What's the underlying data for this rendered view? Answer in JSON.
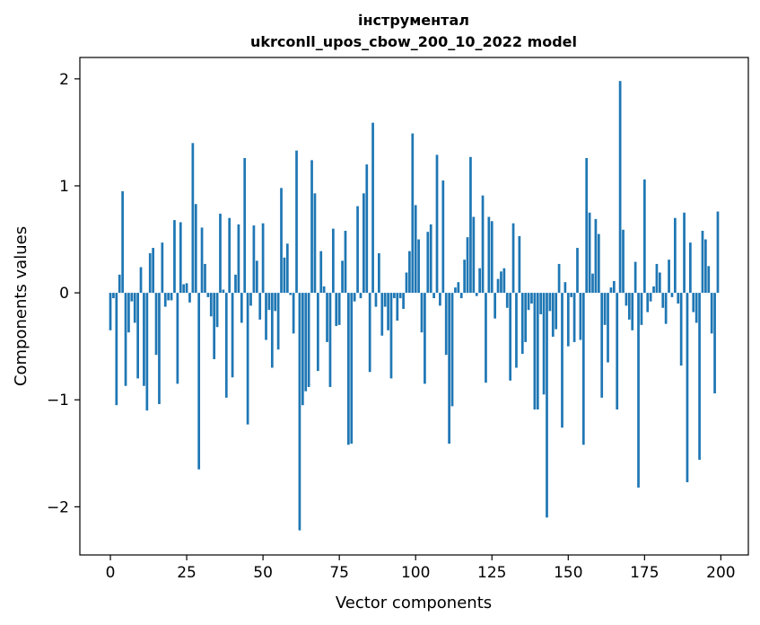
{
  "chart_data": {
    "type": "bar",
    "title_line1": "інструментал",
    "title_line2": "ukrconll_upos_cbow_200_10_2022 model",
    "xlabel": "Vector components",
    "ylabel": "Components values",
    "xlim": [
      -10,
      209
    ],
    "ylim": [
      -2.45,
      2.2
    ],
    "xticks": [
      0,
      25,
      50,
      75,
      100,
      125,
      150,
      175,
      200
    ],
    "xtick_labels": [
      "0",
      "25",
      "50",
      "75",
      "100",
      "125",
      "150",
      "175",
      "200"
    ],
    "yticks": [
      -2,
      -1,
      0,
      1,
      2
    ],
    "ytick_labels": [
      "−2",
      "−1",
      "0",
      "1",
      "2"
    ],
    "bar_color": "#1f77b4",
    "values": [
      -0.35,
      -0.05,
      -1.05,
      0.17,
      0.95,
      -0.87,
      -0.37,
      -0.08,
      -0.28,
      -0.8,
      0.24,
      -0.87,
      -1.1,
      0.37,
      0.42,
      -0.58,
      -1.04,
      0.47,
      -0.13,
      -0.07,
      -0.07,
      0.68,
      -0.85,
      0.66,
      0.08,
      0.09,
      -0.09,
      1.4,
      0.83,
      -1.65,
      0.61,
      0.27,
      -0.04,
      -0.22,
      -0.62,
      -0.32,
      0.74,
      0.03,
      -0.98,
      0.7,
      -0.79,
      0.17,
      0.64,
      -0.28,
      1.26,
      -1.23,
      -0.12,
      0.63,
      0.3,
      -0.25,
      0.65,
      -0.44,
      -0.16,
      -0.7,
      -0.17,
      -0.53,
      0.98,
      0.33,
      0.46,
      -0.02,
      -0.38,
      1.33,
      -2.22,
      -1.05,
      -0.92,
      -0.88,
      1.24,
      0.93,
      -0.73,
      0.39,
      0.06,
      -0.46,
      -0.88,
      0.6,
      -0.31,
      -0.3,
      0.3,
      0.58,
      -1.42,
      -1.41,
      -0.08,
      0.81,
      -0.05,
      0.93,
      1.2,
      -0.74,
      1.59,
      -0.13,
      0.37,
      -0.4,
      -0.13,
      -0.35,
      -0.8,
      -0.05,
      -0.26,
      -0.05,
      -0.15,
      0.19,
      0.39,
      1.49,
      0.82,
      0.5,
      -0.37,
      -0.85,
      0.57,
      0.64,
      -0.05,
      1.29,
      -0.12,
      1.05,
      -0.58,
      -1.41,
      -1.06,
      0.05,
      0.1,
      -0.05,
      0.31,
      0.52,
      1.27,
      0.71,
      -0.03,
      0.23,
      0.91,
      -0.84,
      0.71,
      0.67,
      -0.24,
      0.13,
      0.2,
      0.23,
      -0.14,
      -0.82,
      0.65,
      -0.7,
      0.53,
      -0.57,
      -0.46,
      -0.16,
      -0.1,
      -1.09,
      -1.09,
      -0.2,
      -0.95,
      -2.1,
      -0.17,
      -0.41,
      -0.34,
      0.27,
      -1.26,
      0.1,
      -0.5,
      -0.04,
      -0.46,
      0.42,
      -0.44,
      -1.42,
      1.26,
      0.75,
      0.18,
      0.69,
      0.55,
      -0.98,
      -0.3,
      -0.65,
      0.05,
      0.11,
      -1.09,
      1.98,
      0.59,
      -0.12,
      -0.25,
      -0.35,
      0.29,
      -1.82,
      -0.3,
      1.06,
      -0.18,
      -0.08,
      0.06,
      0.27,
      0.19,
      -0.14,
      -0.29,
      0.31,
      -0.04,
      0.7,
      -0.1,
      -0.68,
      0.75,
      -1.77,
      0.47,
      -0.18,
      -0.28,
      -1.56,
      0.58,
      0.5,
      0.25,
      -0.38,
      -0.94,
      0.76
    ]
  }
}
